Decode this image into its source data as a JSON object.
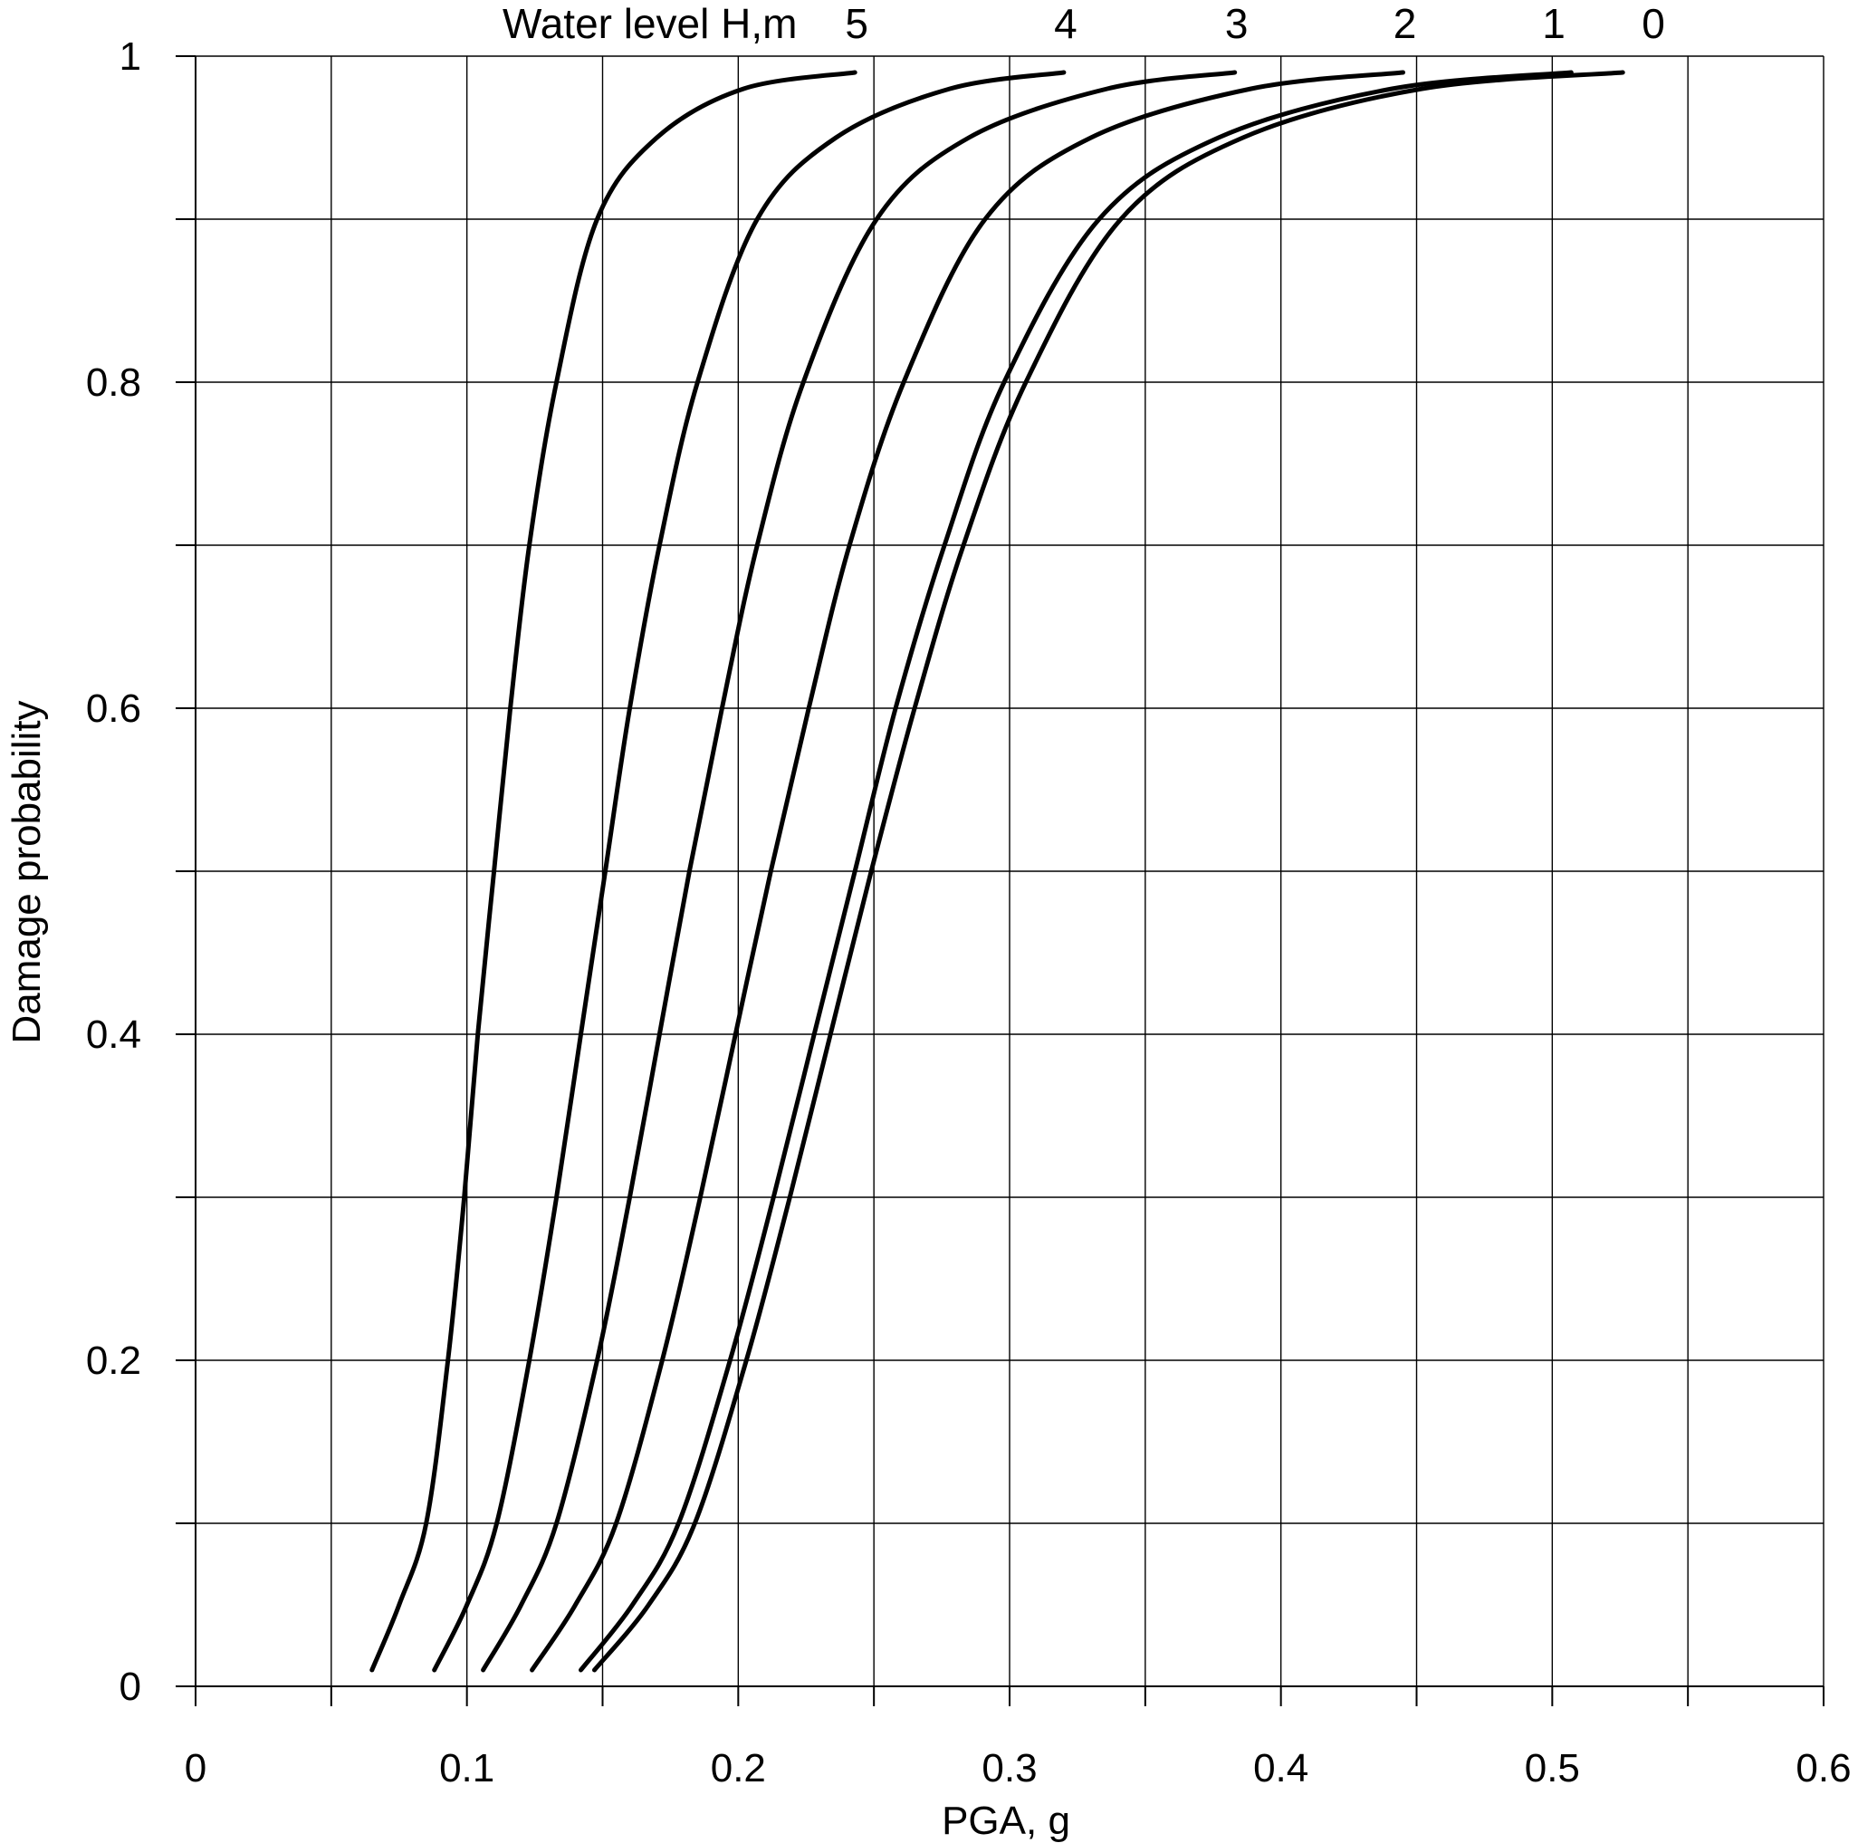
{
  "chart_data": {
    "type": "line",
    "title": "",
    "xlabel": "PGA, g",
    "ylabel": "Damage probability",
    "xlim": [
      0,
      0.6
    ],
    "ylim": [
      0,
      1
    ],
    "x_ticks": [
      "0",
      "0.1",
      "0.2",
      "0.3",
      "0.4",
      "0.5",
      "0.6"
    ],
    "y_ticks": [
      "0",
      "0.2",
      "0.4",
      "0.6",
      "0.8",
      "1"
    ],
    "x_minor_step": 0.05,
    "y_minor_step": 0.1,
    "grid": true,
    "legend_title": "Water level H,m",
    "legend_placement": "top",
    "series": [
      {
        "name": "5",
        "points": [
          [
            0.065,
            0.01
          ],
          [
            0.075,
            0.05
          ],
          [
            0.085,
            0.1
          ],
          [
            0.093,
            0.2
          ],
          [
            0.099,
            0.3
          ],
          [
            0.104,
            0.4
          ],
          [
            0.11,
            0.5
          ],
          [
            0.116,
            0.6
          ],
          [
            0.123,
            0.7
          ],
          [
            0.133,
            0.8
          ],
          [
            0.148,
            0.9
          ],
          [
            0.17,
            0.95
          ],
          [
            0.202,
            0.98
          ],
          [
            0.243,
            0.99
          ]
        ]
      },
      {
        "name": "4",
        "points": [
          [
            0.088,
            0.01
          ],
          [
            0.1,
            0.05
          ],
          [
            0.111,
            0.1
          ],
          [
            0.123,
            0.2
          ],
          [
            0.133,
            0.3
          ],
          [
            0.142,
            0.4
          ],
          [
            0.151,
            0.5
          ],
          [
            0.16,
            0.6
          ],
          [
            0.171,
            0.7
          ],
          [
            0.185,
            0.8
          ],
          [
            0.207,
            0.9
          ],
          [
            0.236,
            0.95
          ],
          [
            0.278,
            0.98
          ],
          [
            0.32,
            0.99
          ]
        ]
      },
      {
        "name": "3",
        "points": [
          [
            0.106,
            0.01
          ],
          [
            0.12,
            0.05
          ],
          [
            0.133,
            0.1
          ],
          [
            0.148,
            0.2
          ],
          [
            0.16,
            0.3
          ],
          [
            0.171,
            0.4
          ],
          [
            0.182,
            0.5
          ],
          [
            0.194,
            0.6
          ],
          [
            0.207,
            0.7
          ],
          [
            0.224,
            0.8
          ],
          [
            0.251,
            0.9
          ],
          [
            0.285,
            0.95
          ],
          [
            0.336,
            0.98
          ],
          [
            0.383,
            0.99
          ]
        ]
      },
      {
        "name": "2",
        "points": [
          [
            0.124,
            0.01
          ],
          [
            0.14,
            0.05
          ],
          [
            0.155,
            0.1
          ],
          [
            0.172,
            0.2
          ],
          [
            0.186,
            0.3
          ],
          [
            0.199,
            0.4
          ],
          [
            0.212,
            0.5
          ],
          [
            0.226,
            0.6
          ],
          [
            0.241,
            0.7
          ],
          [
            0.261,
            0.8
          ],
          [
            0.291,
            0.9
          ],
          [
            0.33,
            0.95
          ],
          [
            0.389,
            0.98
          ],
          [
            0.445,
            0.99
          ]
        ]
      },
      {
        "name": "1",
        "points": [
          [
            0.142,
            0.01
          ],
          [
            0.161,
            0.05
          ],
          [
            0.178,
            0.1
          ],
          [
            0.197,
            0.2
          ],
          [
            0.213,
            0.3
          ],
          [
            0.228,
            0.4
          ],
          [
            0.243,
            0.5
          ],
          [
            0.258,
            0.6
          ],
          [
            0.276,
            0.7
          ],
          [
            0.298,
            0.8
          ],
          [
            0.333,
            0.9
          ],
          [
            0.377,
            0.95
          ],
          [
            0.441,
            0.98
          ],
          [
            0.507,
            0.99
          ]
        ]
      },
      {
        "name": "0",
        "points": [
          [
            0.147,
            0.01
          ],
          [
            0.167,
            0.05
          ],
          [
            0.184,
            0.1
          ],
          [
            0.203,
            0.2
          ],
          [
            0.219,
            0.3
          ],
          [
            0.234,
            0.4
          ],
          [
            0.249,
            0.5
          ],
          [
            0.265,
            0.6
          ],
          [
            0.283,
            0.7
          ],
          [
            0.306,
            0.8
          ],
          [
            0.341,
            0.9
          ],
          [
            0.386,
            0.95
          ],
          [
            0.452,
            0.98
          ],
          [
            0.526,
            0.99
          ]
        ]
      }
    ]
  }
}
